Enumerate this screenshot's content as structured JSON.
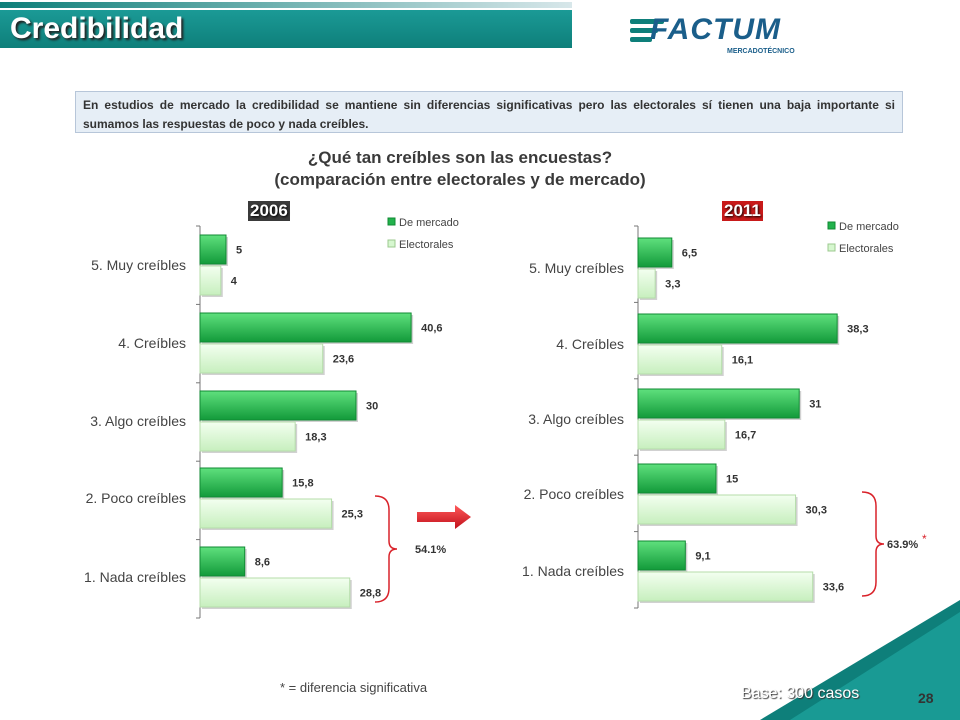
{
  "header": {
    "title": "Credibilidad"
  },
  "logo": {
    "name": "FACTUM",
    "subtitle": "MERCADOTÉCNICO"
  },
  "intro_text": "En estudios de mercado la credibilidad se mantiene sin diferencias significativas pero las electorales sí tienen una baja importante si sumamos las respuestas de poco y nada creíbles.",
  "question": {
    "line1": "¿Qué tan creíbles son las encuestas?",
    "line2": "(comparación entre electorales y de mercado)"
  },
  "footer": {
    "footnote": "* = diferencia significativa",
    "base": "Base: 300 casos",
    "page_number": "28"
  },
  "colors": {
    "market": "#22b24c",
    "electoral": "#d6f7cf",
    "teal": "#0e7f7a",
    "bracket": "#d9222a"
  },
  "chart_data": [
    {
      "type": "bar",
      "title": "2006",
      "orientation": "horizontal",
      "categories": [
        "5. Muy creíbles",
        "4. Creíbles",
        "3. Algo creíbles",
        "2. Poco creíbles",
        "1. Nada creíbles"
      ],
      "series": [
        {
          "name": "De mercado",
          "values": [
            5,
            40.6,
            30,
            15.8,
            8.6
          ],
          "labels": [
            "5",
            "40,6",
            "30",
            "15,8",
            "8,6"
          ]
        },
        {
          "name": "Electorales",
          "values": [
            4,
            23.6,
            18.3,
            25.3,
            28.8
          ],
          "labels": [
            "4",
            "23,6",
            "18,3",
            "25,3",
            "28,8"
          ]
        }
      ],
      "bracket_label": "54.1%",
      "bracket_categories": [
        "2. Poco creíbles",
        "1. Nada creíbles"
      ],
      "legend": "top-right"
    },
    {
      "type": "bar",
      "title": "2011",
      "orientation": "horizontal",
      "categories": [
        "5. Muy creíbles",
        "4. Creíbles",
        "3. Algo creíbles",
        "2. Poco creíbles",
        "1. Nada creíbles"
      ],
      "series": [
        {
          "name": "De mercado",
          "values": [
            6.5,
            38.3,
            31,
            15,
            9.1
          ],
          "labels": [
            "6,5",
            "38,3",
            "31",
            "15",
            "9,1"
          ]
        },
        {
          "name": "Electorales",
          "values": [
            3.3,
            16.1,
            16.7,
            30.3,
            33.6
          ],
          "labels": [
            "3,3",
            "16,1",
            "16,7",
            "30,3",
            "33,6"
          ]
        }
      ],
      "bracket_label": "63.9%",
      "bracket_mark": "*",
      "bracket_categories": [
        "2. Poco creíbles",
        "1. Nada creíbles"
      ],
      "legend": "top-right"
    }
  ]
}
